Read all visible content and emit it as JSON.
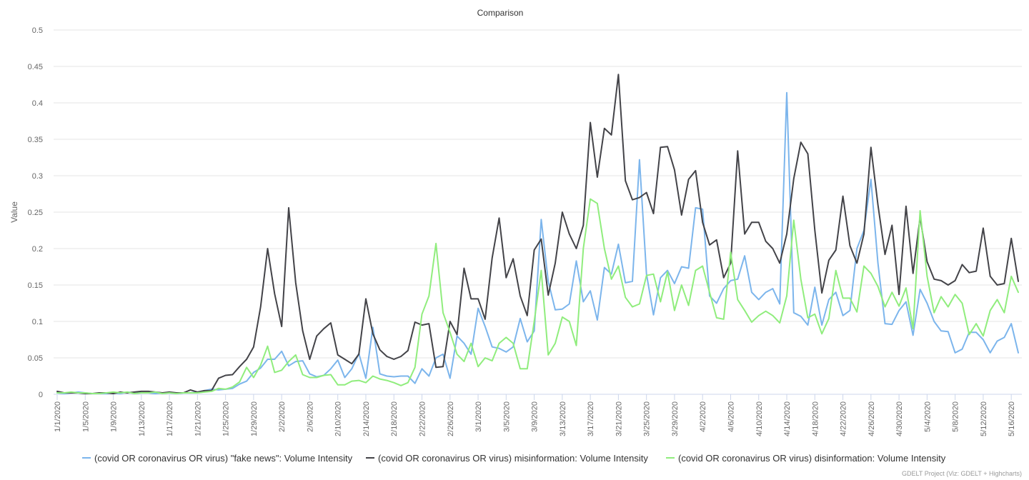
{
  "credit": "GDELT Project (Viz: GDELT + Highcharts)",
  "chart_data": {
    "type": "line",
    "title": "Comparison",
    "ylabel": "Value",
    "xlabel": "",
    "ylim": [
      0,
      0.5
    ],
    "y_ticks": [
      "0",
      "0.05",
      "0.1",
      "0.15",
      "0.2",
      "0.25",
      "0.3",
      "0.35",
      "0.4",
      "0.45",
      "0.5"
    ],
    "x_start": "1/1/2020",
    "x_tick_labels": [
      "1/1/2020",
      "1/5/2020",
      "1/9/2020",
      "1/13/2020",
      "1/17/2020",
      "1/21/2020",
      "1/25/2020",
      "1/29/2020",
      "2/2/2020",
      "2/6/2020",
      "2/10/2020",
      "2/14/2020",
      "2/18/2020",
      "2/22/2020",
      "2/26/2020",
      "3/1/2020",
      "3/5/2020",
      "3/9/2020",
      "3/13/2020",
      "3/17/2020",
      "3/21/2020",
      "3/25/2020",
      "3/29/2020",
      "4/2/2020",
      "4/6/2020",
      "4/10/2020",
      "4/14/2020",
      "4/18/2020",
      "4/22/2020",
      "4/26/2020",
      "4/30/2020",
      "5/4/2020",
      "5/8/2020",
      "5/12/2020",
      "5/16/2020"
    ],
    "grid": true,
    "legend_position": "bottom",
    "series": [
      {
        "name": "(covid OR coronavirus OR virus) \"fake news\": Volume Intensity",
        "color": "#7cb5ec",
        "values": [
          0.002,
          0.001,
          0.002,
          0.003,
          0.002,
          0.001,
          0.001,
          0.001,
          0.002,
          0.001,
          0.003,
          0.002,
          0.002,
          0.002,
          0.001,
          0.002,
          0.002,
          0.001,
          0.002,
          0.002,
          0.003,
          0.005,
          0.007,
          0.006,
          0.007,
          0.008,
          0.014,
          0.018,
          0.03,
          0.036,
          0.048,
          0.048,
          0.059,
          0.039,
          0.045,
          0.046,
          0.028,
          0.024,
          0.026,
          0.035,
          0.047,
          0.023,
          0.035,
          0.056,
          0.022,
          0.092,
          0.028,
          0.025,
          0.024,
          0.025,
          0.025,
          0.015,
          0.035,
          0.025,
          0.05,
          0.055,
          0.022,
          0.08,
          0.07,
          0.055,
          0.118,
          0.093,
          0.065,
          0.063,
          0.058,
          0.065,
          0.104,
          0.072,
          0.087,
          0.24,
          0.155,
          0.116,
          0.117,
          0.124,
          0.183,
          0.127,
          0.142,
          0.102,
          0.174,
          0.165,
          0.206,
          0.153,
          0.155,
          0.322,
          0.165,
          0.109,
          0.16,
          0.17,
          0.152,
          0.175,
          0.173,
          0.256,
          0.254,
          0.135,
          0.125,
          0.145,
          0.156,
          0.158,
          0.19,
          0.14,
          0.13,
          0.14,
          0.145,
          0.124,
          0.414,
          0.112,
          0.107,
          0.095,
          0.147,
          0.095,
          0.13,
          0.14,
          0.108,
          0.115,
          0.2,
          0.225,
          0.295,
          0.18,
          0.097,
          0.096,
          0.115,
          0.127,
          0.081,
          0.144,
          0.125,
          0.1,
          0.087,
          0.086,
          0.057,
          0.062,
          0.085,
          0.085,
          0.075,
          0.057,
          0.073,
          0.078,
          0.097,
          0.057
        ]
      },
      {
        "name": "(covid OR coronavirus OR virus) misinformation: Volume Intensity",
        "color": "#434348",
        "values": [
          0.004,
          0.002,
          0.002,
          0.002,
          0.001,
          0.001,
          0.002,
          0.002,
          0.001,
          0.003,
          0.002,
          0.003,
          0.004,
          0.004,
          0.003,
          0.002,
          0.003,
          0.002,
          0.002,
          0.006,
          0.003,
          0.005,
          0.005,
          0.022,
          0.026,
          0.027,
          0.038,
          0.048,
          0.065,
          0.12,
          0.2,
          0.138,
          0.093,
          0.256,
          0.153,
          0.087,
          0.048,
          0.08,
          0.09,
          0.098,
          0.054,
          0.048,
          0.042,
          0.055,
          0.131,
          0.083,
          0.061,
          0.052,
          0.048,
          0.052,
          0.06,
          0.099,
          0.095,
          0.097,
          0.037,
          0.038,
          0.1,
          0.082,
          0.173,
          0.131,
          0.131,
          0.103,
          0.187,
          0.242,
          0.16,
          0.186,
          0.135,
          0.108,
          0.198,
          0.213,
          0.136,
          0.18,
          0.25,
          0.22,
          0.2,
          0.232,
          0.373,
          0.298,
          0.365,
          0.356,
          0.439,
          0.293,
          0.267,
          0.27,
          0.277,
          0.248,
          0.339,
          0.34,
          0.308,
          0.246,
          0.295,
          0.307,
          0.236,
          0.205,
          0.212,
          0.16,
          0.18,
          0.334,
          0.22,
          0.236,
          0.236,
          0.21,
          0.2,
          0.18,
          0.22,
          0.296,
          0.346,
          0.33,
          0.225,
          0.139,
          0.184,
          0.198,
          0.272,
          0.204,
          0.18,
          0.22,
          0.339,
          0.26,
          0.192,
          0.232,
          0.137,
          0.258,
          0.166,
          0.243,
          0.182,
          0.158,
          0.156,
          0.15,
          0.156,
          0.178,
          0.167,
          0.169,
          0.228,
          0.162,
          0.15,
          0.152,
          0.214,
          0.155
        ]
      },
      {
        "name": "(covid OR coronavirus OR virus) disinformation: Volume Intensity",
        "color": "#90ed7d",
        "values": [
          0.002,
          0.002,
          0.003,
          0.002,
          0.002,
          0.001,
          0.001,
          0.002,
          0.003,
          0.002,
          0.003,
          0.001,
          0.002,
          0.002,
          0.003,
          0.001,
          0.002,
          0.001,
          0.002,
          0.002,
          0.002,
          0.003,
          0.004,
          0.008,
          0.007,
          0.01,
          0.017,
          0.037,
          0.023,
          0.04,
          0.066,
          0.03,
          0.033,
          0.045,
          0.054,
          0.027,
          0.023,
          0.023,
          0.026,
          0.027,
          0.013,
          0.013,
          0.018,
          0.019,
          0.016,
          0.025,
          0.021,
          0.019,
          0.016,
          0.012,
          0.016,
          0.037,
          0.11,
          0.135,
          0.207,
          0.112,
          0.085,
          0.055,
          0.045,
          0.07,
          0.038,
          0.05,
          0.046,
          0.07,
          0.078,
          0.07,
          0.035,
          0.035,
          0.1,
          0.17,
          0.054,
          0.07,
          0.106,
          0.1,
          0.067,
          0.2,
          0.268,
          0.262,
          0.2,
          0.158,
          0.176,
          0.133,
          0.12,
          0.124,
          0.163,
          0.165,
          0.127,
          0.168,
          0.115,
          0.15,
          0.122,
          0.17,
          0.176,
          0.14,
          0.105,
          0.103,
          0.195,
          0.13,
          0.115,
          0.099,
          0.108,
          0.114,
          0.108,
          0.098,
          0.135,
          0.239,
          0.158,
          0.105,
          0.11,
          0.083,
          0.104,
          0.17,
          0.132,
          0.132,
          0.113,
          0.176,
          0.166,
          0.148,
          0.12,
          0.14,
          0.121,
          0.146,
          0.09,
          0.252,
          0.162,
          0.112,
          0.134,
          0.12,
          0.137,
          0.125,
          0.082,
          0.097,
          0.08,
          0.115,
          0.13,
          0.112,
          0.162,
          0.14
        ]
      }
    ]
  }
}
